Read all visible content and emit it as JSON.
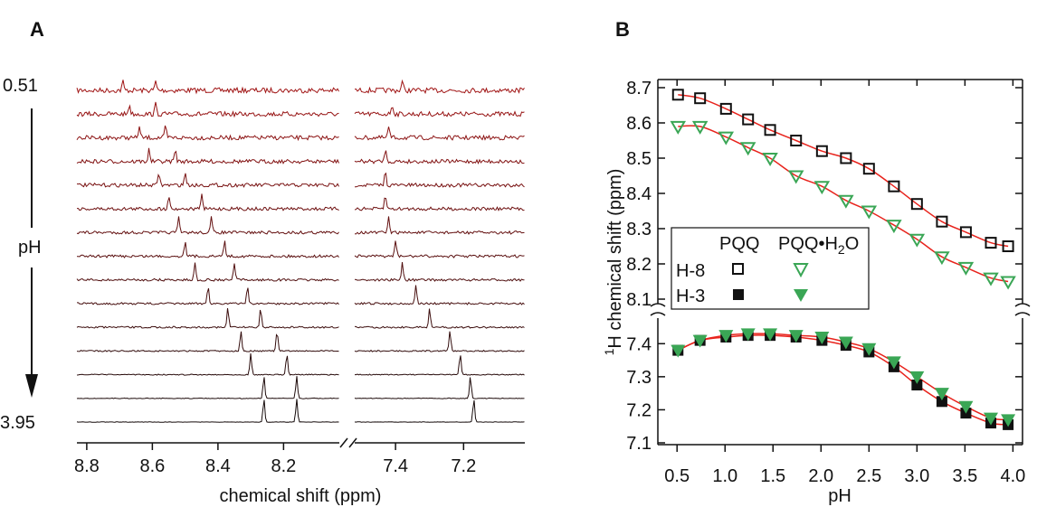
{
  "chart_data": [
    {
      "panel": "A",
      "type": "line",
      "ph_top_label": "0.51",
      "ph_label": "pH",
      "ph_bottom_label": "3.95",
      "xlabel": "chemical shift (ppm)",
      "x_left_segment": {
        "ticks": [
          "8.8",
          "8.6",
          "8.4",
          "8.2"
        ],
        "range": [
          8.83,
          8.03
        ]
      },
      "x_right_segment": {
        "ticks": [
          "7.4",
          "7.2"
        ],
        "range": [
          7.52,
          7.02
        ]
      },
      "spectra_peaks_ppm": [
        [
          8.69,
          8.59,
          7.38
        ],
        [
          8.67,
          8.59,
          7.41
        ],
        [
          8.64,
          8.56,
          7.42
        ],
        [
          8.61,
          8.53,
          7.43
        ],
        [
          8.58,
          8.5,
          7.43
        ],
        [
          8.55,
          8.45,
          7.43
        ],
        [
          8.52,
          8.42,
          7.42
        ],
        [
          8.5,
          8.38,
          7.4
        ],
        [
          8.47,
          8.35,
          7.38
        ],
        [
          8.43,
          8.31,
          7.34
        ],
        [
          8.37,
          8.27,
          7.3
        ],
        [
          8.33,
          8.22,
          7.24
        ],
        [
          8.3,
          8.19,
          7.21
        ],
        [
          8.26,
          8.16,
          7.18
        ],
        [
          8.26,
          8.16,
          7.17
        ]
      ]
    },
    {
      "panel": "B",
      "type": "scatter",
      "xlabel": "pH",
      "ylabel": "1H chemical shift (ppm)",
      "ylabel_sup": "1",
      "ylabel_rest": "H chemical shift (ppm)",
      "x_ticks": [
        "0.5",
        "1.0",
        "1.5",
        "2.0",
        "2.5",
        "3.0",
        "3.5",
        "4.0"
      ],
      "xlim": [
        0.3,
        4.1
      ],
      "y_upper_ticks": [
        "8.1",
        "8.2",
        "8.3",
        "8.4",
        "8.5",
        "8.6",
        "8.7"
      ],
      "y_upper_range": [
        8.09,
        8.71
      ],
      "y_lower_ticks": [
        "7.1",
        "7.2",
        "7.3",
        "7.4"
      ],
      "y_lower_range": [
        7.1,
        7.46
      ],
      "legend": {
        "col1": "PQQ",
        "col2_prefix": "PQQ•H",
        "col2_sub": "2",
        "col2_suffix": "O",
        "row1": "H-8",
        "row2": "H-3"
      },
      "x": [
        0.51,
        0.74,
        1.01,
        1.24,
        1.47,
        1.74,
        2.01,
        2.26,
        2.5,
        2.76,
        3.0,
        3.26,
        3.51,
        3.77,
        3.95
      ],
      "series": [
        {
          "name": "H-8 PQQ",
          "marker": "open-square",
          "color": "#111111",
          "values": [
            8.68,
            8.67,
            8.64,
            8.61,
            8.58,
            8.55,
            8.52,
            8.5,
            8.47,
            8.42,
            8.37,
            8.32,
            8.29,
            8.26,
            8.25
          ]
        },
        {
          "name": "H-8 PQQ•H2O",
          "marker": "open-triangle-down",
          "color": "#3aa655",
          "values": [
            8.59,
            8.59,
            8.56,
            8.53,
            8.5,
            8.45,
            8.42,
            8.38,
            8.35,
            8.31,
            8.27,
            8.22,
            8.19,
            8.16,
            8.15
          ]
        },
        {
          "name": "H-3 PQQ",
          "marker": "filled-square",
          "color": "#111111",
          "values": [
            7.38,
            7.41,
            7.42,
            7.425,
            7.425,
            7.42,
            7.41,
            7.395,
            7.375,
            7.33,
            7.275,
            7.225,
            7.19,
            7.16,
            7.155
          ]
        },
        {
          "name": "H-3 PQQ•H2O",
          "marker": "filled-triangle-down",
          "color": "#3aa655",
          "values": [
            7.38,
            7.41,
            7.425,
            7.43,
            7.43,
            7.425,
            7.42,
            7.405,
            7.385,
            7.345,
            7.3,
            7.25,
            7.21,
            7.175,
            7.17
          ]
        }
      ],
      "fit_color": "#e8231c"
    }
  ]
}
